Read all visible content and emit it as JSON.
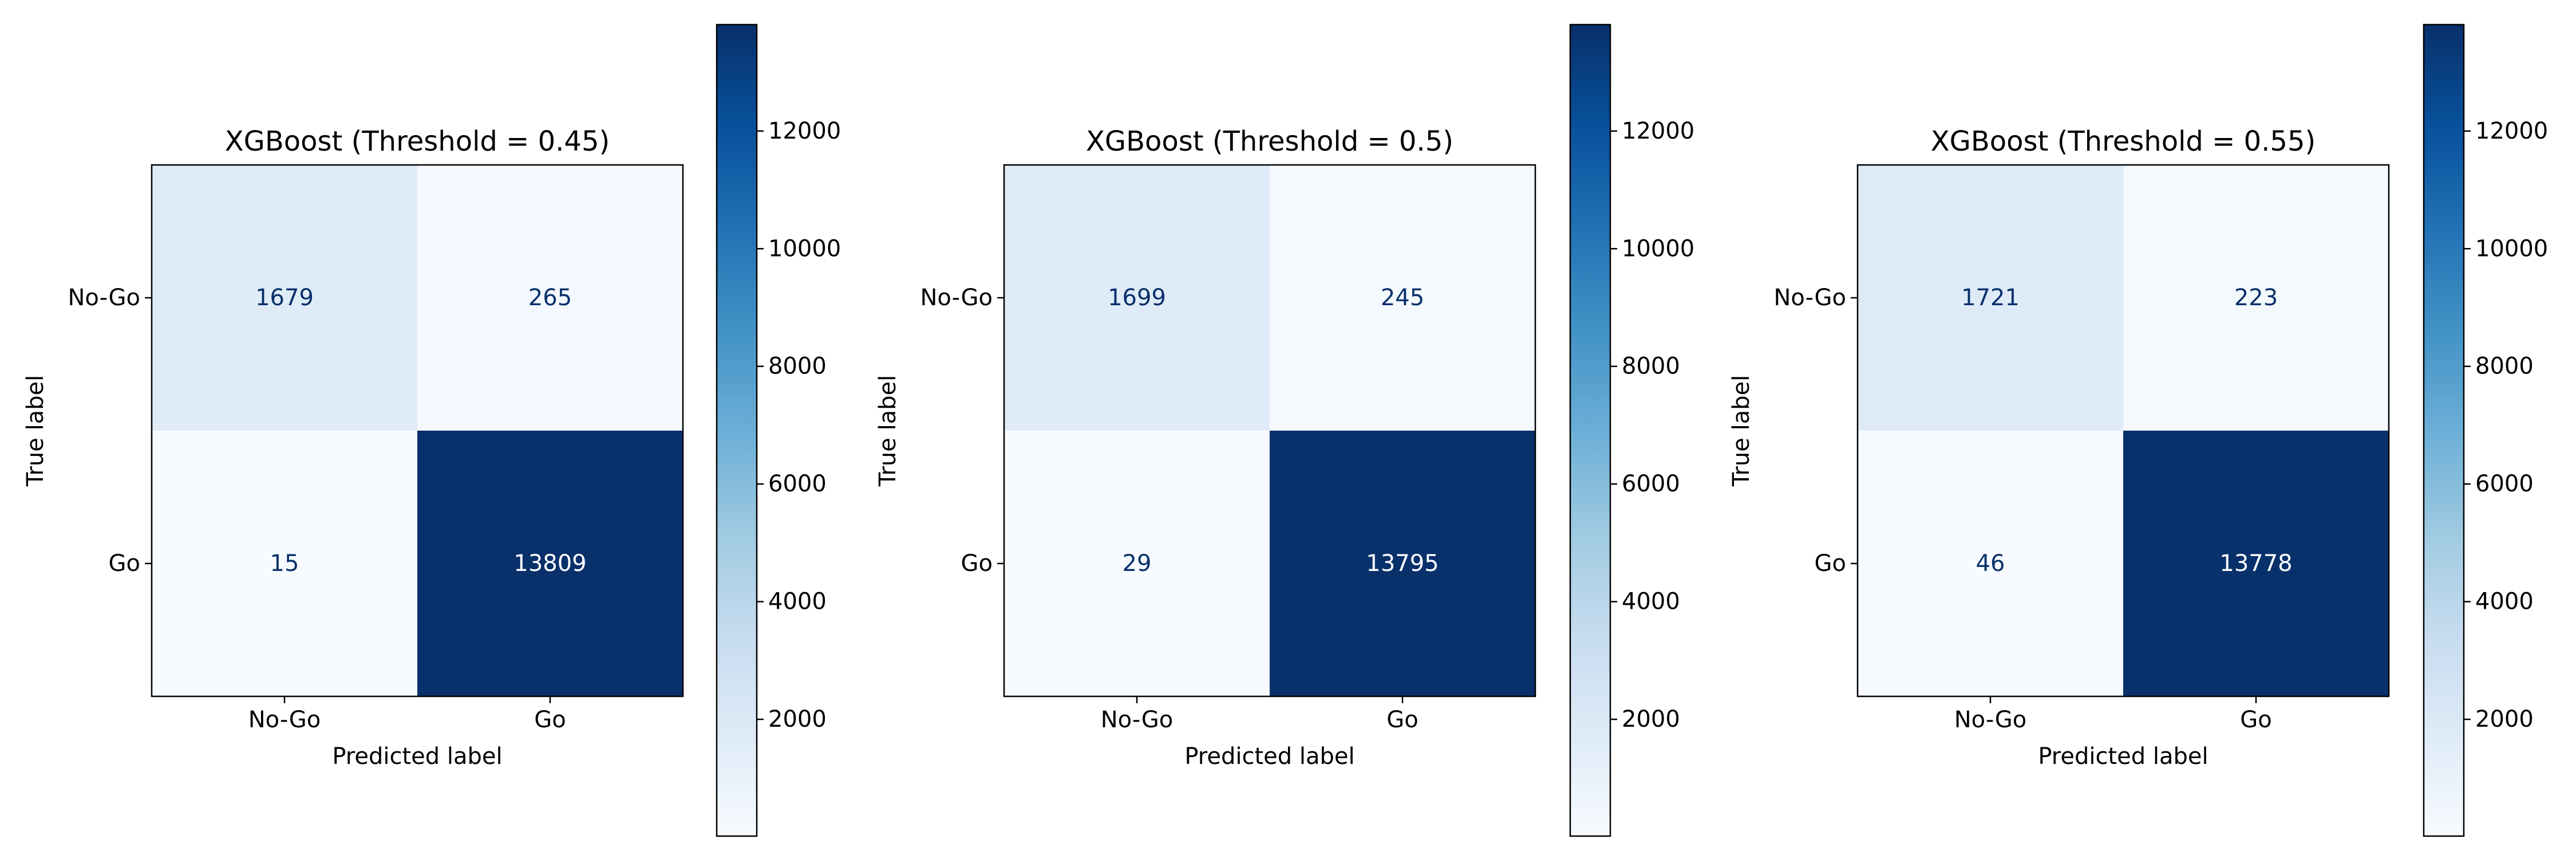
{
  "chart_data": [
    {
      "type": "heatmap",
      "title": "XGBoost (Threshold = 0.45)",
      "xlabel": "Predicted label",
      "ylabel": "True label",
      "x_categories": [
        "No-Go",
        "Go"
      ],
      "y_categories": [
        "No-Go",
        "Go"
      ],
      "values": [
        [
          1679,
          265
        ],
        [
          15,
          13809
        ]
      ],
      "colormap": "Blues",
      "colorbar": {
        "ticks": [
          2000,
          4000,
          6000,
          8000,
          10000,
          12000
        ],
        "range": [
          15,
          13809
        ]
      }
    },
    {
      "type": "heatmap",
      "title": "XGBoost (Threshold = 0.5)",
      "xlabel": "Predicted label",
      "ylabel": "True label",
      "x_categories": [
        "No-Go",
        "Go"
      ],
      "y_categories": [
        "No-Go",
        "Go"
      ],
      "values": [
        [
          1699,
          245
        ],
        [
          29,
          13795
        ]
      ],
      "colormap": "Blues",
      "colorbar": {
        "ticks": [
          2000,
          4000,
          6000,
          8000,
          10000,
          12000
        ],
        "range": [
          15,
          13809
        ]
      }
    },
    {
      "type": "heatmap",
      "title": "XGBoost (Threshold = 0.55)",
      "xlabel": "Predicted label",
      "ylabel": "True label",
      "x_categories": [
        "No-Go",
        "Go"
      ],
      "y_categories": [
        "No-Go",
        "Go"
      ],
      "values": [
        [
          1721,
          223
        ],
        [
          46,
          13778
        ]
      ],
      "colormap": "Blues",
      "colorbar": {
        "ticks": [
          2000,
          4000,
          6000,
          8000,
          10000,
          12000
        ],
        "range": [
          15,
          13809
        ]
      }
    }
  ]
}
